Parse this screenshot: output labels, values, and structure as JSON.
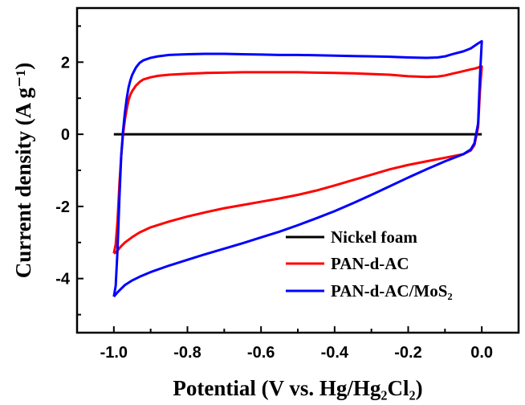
{
  "chart_data": {
    "type": "line",
    "title": "",
    "xlabel": "Potential (V vs. Hg/Hg₂Cl₂)",
    "ylabel": "Current density (A g⁻¹)",
    "xlim": [
      -1.1,
      0.1
    ],
    "ylim": [
      -5.5,
      3.5
    ],
    "x_ticks": [
      -1.0,
      -0.8,
      -0.6,
      -0.4,
      -0.2,
      0.0
    ],
    "x_tick_labels": [
      "-1.0",
      "-0.8",
      "-0.6",
      "-0.4",
      "-0.2",
      "0.0"
    ],
    "y_ticks": [
      -4,
      -2,
      0,
      2
    ],
    "y_tick_labels": [
      "-4",
      "-2",
      "0",
      "2"
    ],
    "grid": false,
    "legend_position": "bottom-right",
    "series": [
      {
        "name": "Nickel foam",
        "color": "#000000",
        "x": [
          -1.0,
          0.0
        ],
        "y": [
          0.0,
          0.0
        ]
      },
      {
        "name": "PAN-d-AC",
        "color": "#ff0000",
        "x": [
          -1.0,
          -0.995,
          -0.99,
          -0.985,
          -0.98,
          -0.975,
          -0.97,
          -0.965,
          -0.96,
          -0.955,
          -0.95,
          -0.94,
          -0.93,
          -0.92,
          -0.9,
          -0.88,
          -0.85,
          -0.8,
          -0.75,
          -0.7,
          -0.65,
          -0.6,
          -0.55,
          -0.5,
          -0.45,
          -0.4,
          -0.35,
          -0.3,
          -0.25,
          -0.2,
          -0.15,
          -0.12,
          -0.1,
          -0.08,
          -0.05,
          -0.03,
          -0.02,
          -0.01,
          -0.005,
          0.0,
          0.0,
          -0.005,
          -0.01,
          -0.02,
          -0.03,
          -0.05,
          -0.1,
          -0.15,
          -0.2,
          -0.25,
          -0.3,
          -0.35,
          -0.4,
          -0.45,
          -0.5,
          -0.55,
          -0.6,
          -0.65,
          -0.7,
          -0.75,
          -0.8,
          -0.85,
          -0.9,
          -0.93,
          -0.95,
          -0.97,
          -0.98,
          -0.99,
          -0.995,
          -1.0
        ],
        "y": [
          -3.3,
          -3.05,
          -2.4,
          -1.4,
          -0.6,
          0.0,
          0.4,
          0.7,
          0.95,
          1.1,
          1.2,
          1.35,
          1.45,
          1.52,
          1.58,
          1.62,
          1.65,
          1.68,
          1.7,
          1.71,
          1.72,
          1.72,
          1.72,
          1.72,
          1.71,
          1.7,
          1.69,
          1.67,
          1.65,
          1.61,
          1.59,
          1.6,
          1.63,
          1.68,
          1.75,
          1.8,
          1.82,
          1.85,
          1.87,
          1.88,
          1.88,
          1.2,
          0.2,
          -0.3,
          -0.45,
          -0.55,
          -0.65,
          -0.75,
          -0.85,
          -0.97,
          -1.12,
          -1.27,
          -1.42,
          -1.56,
          -1.68,
          -1.78,
          -1.87,
          -1.96,
          -2.05,
          -2.16,
          -2.28,
          -2.42,
          -2.58,
          -2.72,
          -2.85,
          -3.0,
          -3.1,
          -3.22,
          -3.28,
          -3.3
        ]
      },
      {
        "name": "PAN-d-AC/MoS₂",
        "color": "#0000ff",
        "x": [
          -1.0,
          -0.995,
          -0.99,
          -0.985,
          -0.98,
          -0.975,
          -0.97,
          -0.965,
          -0.96,
          -0.955,
          -0.95,
          -0.94,
          -0.93,
          -0.92,
          -0.9,
          -0.88,
          -0.85,
          -0.8,
          -0.75,
          -0.7,
          -0.65,
          -0.6,
          -0.55,
          -0.5,
          -0.45,
          -0.4,
          -0.35,
          -0.3,
          -0.25,
          -0.2,
          -0.15,
          -0.12,
          -0.1,
          -0.08,
          -0.05,
          -0.03,
          -0.02,
          -0.01,
          -0.005,
          0.0,
          0.0,
          -0.005,
          -0.01,
          -0.02,
          -0.03,
          -0.05,
          -0.1,
          -0.15,
          -0.2,
          -0.25,
          -0.3,
          -0.35,
          -0.4,
          -0.45,
          -0.5,
          -0.55,
          -0.6,
          -0.65,
          -0.7,
          -0.75,
          -0.8,
          -0.85,
          -0.9,
          -0.93,
          -0.95,
          -0.97,
          -0.98,
          -0.99,
          -0.995,
          -1.0
        ],
        "y": [
          -4.5,
          -4.2,
          -3.2,
          -1.8,
          -0.6,
          0.1,
          0.6,
          1.0,
          1.3,
          1.5,
          1.65,
          1.85,
          1.98,
          2.05,
          2.12,
          2.16,
          2.2,
          2.22,
          2.23,
          2.23,
          2.22,
          2.21,
          2.2,
          2.2,
          2.19,
          2.18,
          2.17,
          2.16,
          2.15,
          2.13,
          2.12,
          2.13,
          2.16,
          2.22,
          2.3,
          2.38,
          2.45,
          2.52,
          2.55,
          2.58,
          2.58,
          1.6,
          0.3,
          -0.25,
          -0.42,
          -0.55,
          -0.75,
          -0.97,
          -1.2,
          -1.44,
          -1.68,
          -1.91,
          -2.13,
          -2.33,
          -2.52,
          -2.7,
          -2.86,
          -3.02,
          -3.17,
          -3.32,
          -3.48,
          -3.64,
          -3.82,
          -3.95,
          -4.05,
          -4.18,
          -4.28,
          -4.38,
          -4.44,
          -4.5
        ]
      }
    ]
  }
}
